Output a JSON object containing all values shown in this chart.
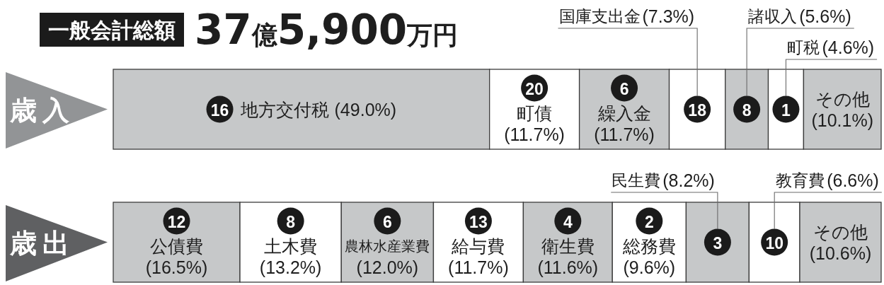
{
  "chart_data": [
    {
      "type": "bar",
      "orientation": "horizontal",
      "stacked": true,
      "title": "一般会計総額",
      "subtitle": "37億5,900万円",
      "categories": [
        "歳入"
      ],
      "xlim": [
        0,
        100
      ],
      "tick_labels": "y",
      "series": [
        {
          "name": "地方交付税",
          "color": "#c6c8c9",
          "values": [
            49.0
          ],
          "value_labels": [
            "(49.0%)"
          ]
        },
        {
          "name": "町債",
          "color": "#ffffff",
          "values": [
            11.7
          ],
          "value_labels": [
            "(11.7%)"
          ]
        },
        {
          "name": "繰入金",
          "color": "#c6c8c9",
          "values": [
            11.7
          ],
          "value_labels": [
            "(11.7%)"
          ]
        },
        {
          "name": "国庫支出金",
          "color": "#ffffff",
          "values": [
            7.3
          ],
          "value_labels": [
            "(7.3%)"
          ]
        },
        {
          "name": "諸収入",
          "color": "#c6c8c9",
          "values": [
            5.6
          ],
          "value_labels": [
            "(5.6%)"
          ]
        },
        {
          "name": "町税",
          "color": "#ffffff",
          "values": [
            4.6
          ],
          "value_labels": [
            "(4.6%)"
          ]
        },
        {
          "name": "その他",
          "color": "#c6c8c9",
          "values": [
            10.1
          ],
          "value_labels": [
            "(10.1%)"
          ]
        }
      ],
      "annotations": [
        "16",
        "20",
        "6",
        "18",
        "8",
        "1"
      ]
    },
    {
      "type": "bar",
      "orientation": "horizontal",
      "stacked": true,
      "categories": [
        "歳出"
      ],
      "xlim": [
        0,
        100
      ],
      "tick_labels": "y",
      "series": [
        {
          "name": "公債費",
          "color": "#c6c8c9",
          "values": [
            16.5
          ],
          "value_labels": [
            "(16.5%)"
          ]
        },
        {
          "name": "土木費",
          "color": "#ffffff",
          "values": [
            13.2
          ],
          "value_labels": [
            "(13.2%)"
          ]
        },
        {
          "name": "農林水産業費",
          "color": "#c6c8c9",
          "values": [
            12.0
          ],
          "value_labels": [
            "(12.0%)"
          ]
        },
        {
          "name": "給与費",
          "color": "#ffffff",
          "values": [
            11.7
          ],
          "value_labels": [
            "(11.7%)"
          ]
        },
        {
          "name": "衛生費",
          "color": "#c6c8c9",
          "values": [
            11.6
          ],
          "value_labels": [
            "(11.6%)"
          ]
        },
        {
          "name": "総務費",
          "color": "#ffffff",
          "values": [
            9.6
          ],
          "value_labels": [
            "(9.6%)"
          ]
        },
        {
          "name": "民生費",
          "color": "#c6c8c9",
          "values": [
            8.2
          ],
          "value_labels": [
            "(8.2%)"
          ]
        },
        {
          "name": "教育費",
          "color": "#ffffff",
          "values": [
            6.6
          ],
          "value_labels": [
            "(6.6%)"
          ]
        },
        {
          "name": "その他",
          "color": "#c6c8c9",
          "values": [
            10.6
          ],
          "value_labels": [
            "(10.6%)"
          ]
        }
      ],
      "annotations": [
        "12",
        "8",
        "6",
        "13",
        "4",
        "2",
        "3",
        "10"
      ]
    }
  ]
}
